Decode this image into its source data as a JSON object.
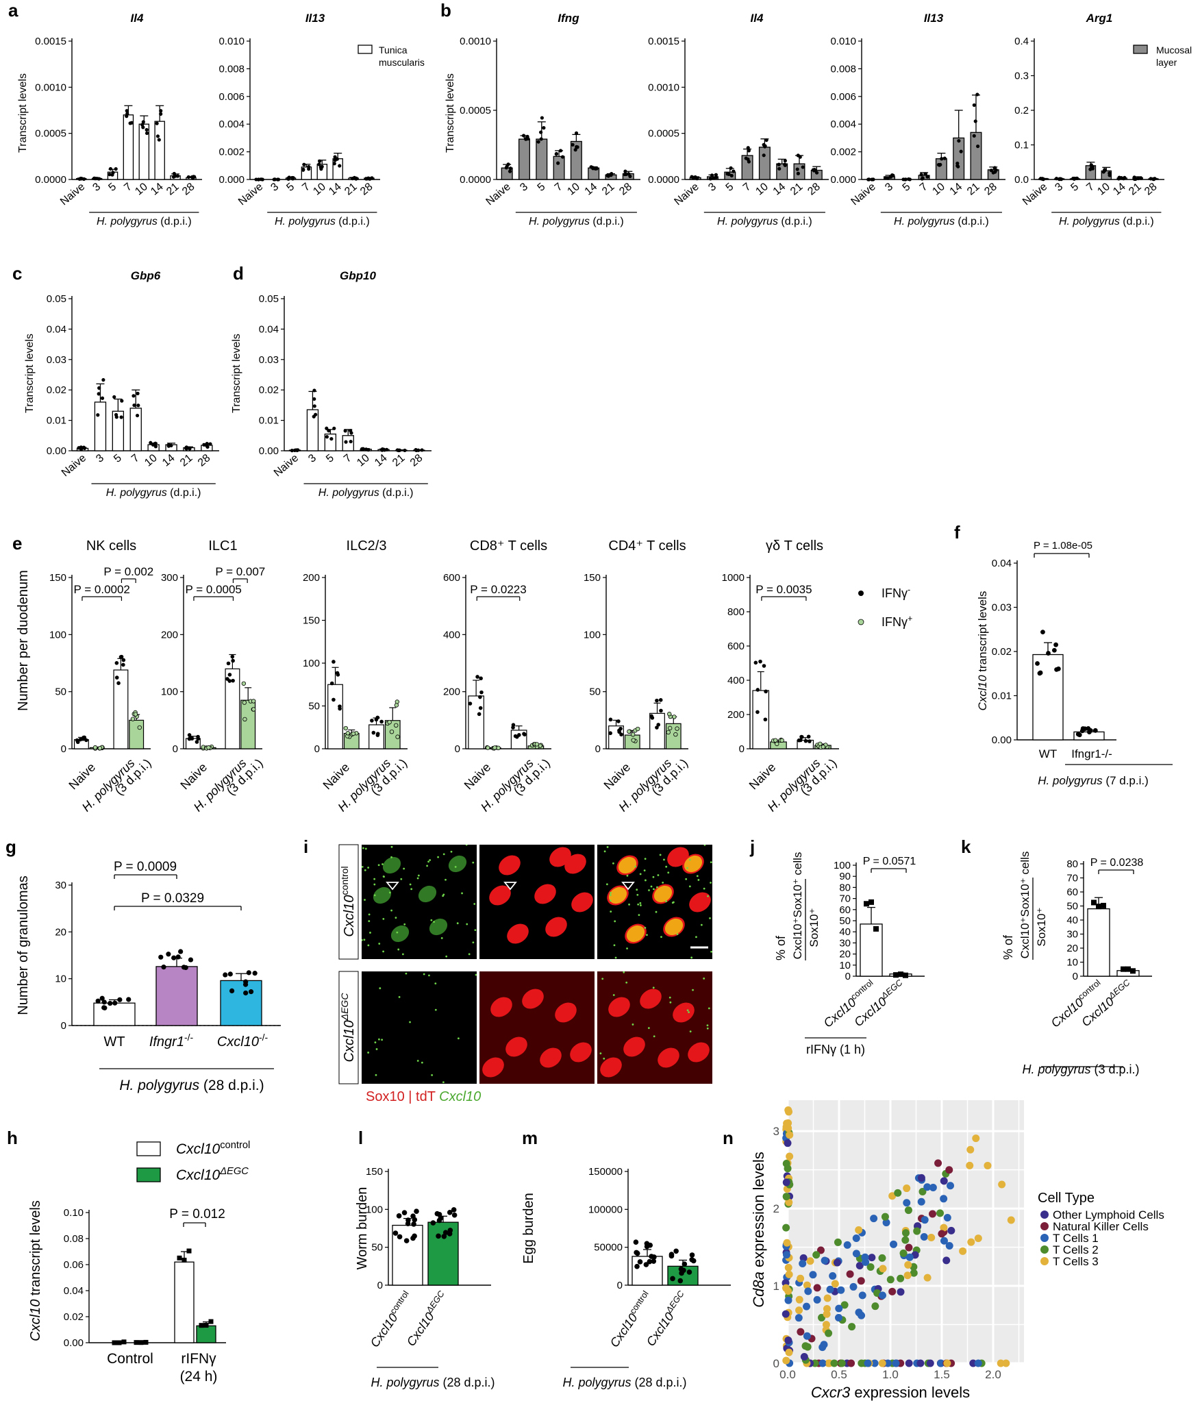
{
  "xgroup": {
    "Naive": "Naive",
    "dpi": [
      "3",
      "5",
      "7",
      "10",
      "14",
      "21",
      "28"
    ]
  },
  "hp_label": {
    "pre": "H. polygyrus",
    "post": " (d.p.i.)"
  },
  "panel_letters": {
    "a": "a",
    "b": "b",
    "c": "c",
    "d": "d",
    "e": "e",
    "f": "f",
    "g": "g",
    "h": "h",
    "i": "i",
    "j": "j",
    "k": "k",
    "l": "l",
    "m": "m",
    "n": "n"
  },
  "ylabel_transcript": "Transcript levels",
  "legend_a": "Tunica muscularis",
  "legend_b": "Mucosal layer",
  "e_legend": [
    "IFNγ⁻",
    "IFNγ⁺"
  ],
  "e_ylabel": "Number per duodenum",
  "e_xcats": [
    "Naive",
    "H. polygyrus",
    "(3 d.p.i.)"
  ],
  "f_texts": {
    "ylabel": "Cxcl10 transcript levels",
    "p": "P = 1.08e-05",
    "xsub": "H. polygyrus (7 d.p.i.)"
  },
  "g_texts": {
    "ylabel": "Number of granulomas",
    "p1": "P = 0.0009",
    "p2": "P = 0.0329",
    "xsub": "H. polygyrus (28 d.p.i.)"
  },
  "h_texts": {
    "ylabel": "Cxcl10 transcript levels",
    "leg1": "Cxcl10control",
    "leg2": "Cxcl10ΔEGC",
    "p": "P = 0.012",
    "x1": "Control",
    "x2": "rIFNγ",
    "x2b": "(24 h)"
  },
  "i_texts": {
    "row1": "Cxcl10control",
    "row2": "Cxcl10ΔEGC",
    "caption_sox": "Sox10 | tdT ",
    "caption_cx": "Cxcl10"
  },
  "j_texts": {
    "ylabel_top": "Cxcl10⁺Sox10⁺ cells",
    "ylabel_bot": "Sox10⁺",
    "ylabel_pre": "% of",
    "p": "P = 0.0571",
    "xsub": "rIFNγ (1 h)",
    "x1": "Cxcl10control",
    "x2": "Cxcl10ΔEGC"
  },
  "k_texts": {
    "ylabel_top": "Cxcl10⁺Sox10⁺ cells",
    "ylabel_bot": "Sox10⁺",
    "ylabel_pre": "% of",
    "p": "P = 0.0238",
    "xsub": "H. polygyrus (3 d.p.i.)",
    "x1": "Cxcl10control",
    "x2": "Cxcl10ΔEGC"
  },
  "l_texts": {
    "ylabel": "Worm burden",
    "xsub": "H. polygyrus (28 d.p.i.)",
    "x1": "Cxcl10control",
    "x2": "Cxcl10ΔEGC"
  },
  "m_texts": {
    "ylabel": "Egg burden",
    "xsub": "H. polygyrus (28 d.p.i.)",
    "x1": "Cxcl10control",
    "x2": "Cxcl10ΔEGC"
  },
  "n_texts": {
    "xlabel": "Cxcr3 expression levels",
    "ylabel": "Cd8a expression levels",
    "legend_title": "Cell Type"
  },
  "colors": {
    "white": "#ffffff",
    "grey": "#8c8c8c",
    "purple": "#b885c4",
    "teal": "#2eb6e0",
    "green": "#1e9a44",
    "lightgreen": "#a9d59a",
    "lymph": "#3a2e8c",
    "nk": "#7a1e3a",
    "t1": "#2a62b5",
    "t2": "#4d8b2c",
    "t3": "#e2b23a"
  },
  "chart_data": [
    {
      "panel": "a",
      "type": "bar",
      "title": "Il4",
      "ylim": [
        0,
        0.0015
      ],
      "yticks": [
        "0.0000",
        "0.0005",
        "0.0010",
        "0.0015"
      ],
      "categories": [
        "Naive",
        "3",
        "5",
        "7",
        "10",
        "14",
        "21",
        "28"
      ],
      "values": [
        1e-05,
        1e-05,
        8e-05,
        0.0007,
        0.0006,
        0.00063,
        4e-05,
        2e-05
      ],
      "errors": [
        5e-06,
        5e-06,
        3e-05,
        0.0001,
        9e-05,
        0.00017,
        2e-05,
        1e-05
      ]
    },
    {
      "panel": "a",
      "type": "bar",
      "title": "Il13",
      "ylim": [
        0,
        0.01
      ],
      "yticks": [
        "0.000",
        "0.002",
        "0.004",
        "0.006",
        "0.008",
        "0.010"
      ],
      "categories": [
        "Naive",
        "3",
        "5",
        "7",
        "10",
        "14",
        "21",
        "28"
      ],
      "values": [
        0.0,
        0.0,
        0.0001,
        0.0009,
        0.0011,
        0.0015,
        0.0001,
        0.0001
      ],
      "errors": [
        0.0,
        0.0,
        5e-05,
        0.0002,
        0.0003,
        0.0004,
        5e-05,
        5e-05
      ]
    },
    {
      "panel": "b",
      "type": "bar",
      "title": "Ifng",
      "ylim": [
        0,
        0.0012
      ],
      "yticks": [
        "0.0000",
        "0.0005",
        "0.0010"
      ],
      "categories": [
        "Naive",
        "3",
        "5",
        "7",
        "10",
        "14",
        "21",
        "28"
      ],
      "values": [
        0.0001,
        0.00035,
        0.00035,
        0.0002,
        0.00033,
        0.0001,
        4e-05,
        5e-05
      ],
      "errors": [
        3e-05,
        3e-05,
        0.00015,
        5e-05,
        6e-05,
        1e-05,
        1e-05,
        2e-05
      ]
    },
    {
      "panel": "b",
      "type": "bar",
      "title": "Il4",
      "ylim": [
        0,
        0.0015
      ],
      "yticks": [
        "0.0000",
        "0.0005",
        "0.0010",
        "0.0015"
      ],
      "categories": [
        "Naive",
        "3",
        "5",
        "7",
        "10",
        "14",
        "21",
        "28"
      ],
      "values": [
        2e-05,
        3e-05,
        8e-05,
        0.00026,
        0.00035,
        0.00017,
        0.00017,
        0.0001
      ],
      "errors": [
        1e-05,
        2e-05,
        4e-05,
        7e-05,
        9e-05,
        5e-05,
        9e-05,
        4e-05
      ]
    },
    {
      "panel": "b",
      "type": "bar",
      "title": "Il13",
      "ylim": [
        0,
        0.01
      ],
      "yticks": [
        "0.000",
        "0.002",
        "0.004",
        "0.006",
        "0.008",
        "0.010"
      ],
      "categories": [
        "Naive",
        "3",
        "5",
        "7",
        "10",
        "14",
        "21",
        "28"
      ],
      "values": [
        0.0,
        0.0002,
        0.0,
        0.0003,
        0.0015,
        0.003,
        0.0034,
        0.0007
      ],
      "errors": [
        0.0,
        0.0001,
        0.0,
        0.0002,
        0.0004,
        0.002,
        0.0027,
        0.0002
      ]
    },
    {
      "panel": "b",
      "type": "bar",
      "title": "Arg1",
      "ylim": [
        0,
        0.4
      ],
      "yticks": [
        "0.0",
        "0.1",
        "0.2",
        "0.3",
        "0.4"
      ],
      "categories": [
        "Naive",
        "3",
        "5",
        "7",
        "10",
        "14",
        "21",
        "28"
      ],
      "values": [
        0.002,
        0.002,
        0.002,
        0.04,
        0.025,
        0.004,
        0.005,
        0.002
      ],
      "errors": [
        0.001,
        0.001,
        0.001,
        0.01,
        0.01,
        0.002,
        0.003,
        0.001
      ]
    },
    {
      "panel": "c",
      "type": "bar",
      "title": "Gbp6",
      "ylim": [
        0,
        0.05
      ],
      "yticks": [
        "0.00",
        "0.01",
        "0.02",
        "0.03",
        "0.04",
        "0.05"
      ],
      "categories": [
        "Naive",
        "3",
        "5",
        "7",
        "10",
        "14",
        "21",
        "28"
      ],
      "values": [
        0.0008,
        0.016,
        0.013,
        0.014,
        0.002,
        0.002,
        0.001,
        0.0018
      ],
      "errors": [
        0.0003,
        0.006,
        0.004,
        0.006,
        0.0005,
        0.0005,
        0.0003,
        0.0005
      ]
    },
    {
      "panel": "d",
      "type": "bar",
      "title": "Gbp10",
      "ylim": [
        0,
        0.05
      ],
      "yticks": [
        "0.00",
        "0.01",
        "0.02",
        "0.03",
        "0.04",
        "0.05"
      ],
      "categories": [
        "Naive",
        "3",
        "5",
        "7",
        "10",
        "14",
        "21",
        "28"
      ],
      "values": [
        0.0002,
        0.0135,
        0.0055,
        0.005,
        0.0005,
        0.0004,
        0.0002,
        0.0002
      ],
      "errors": [
        0.0001,
        0.006,
        0.0015,
        0.002,
        0.0002,
        0.0002,
        0.0001,
        0.0001
      ]
    },
    {
      "panel": "e",
      "type": "bar",
      "title": "NK cells",
      "ylim": [
        0,
        150
      ],
      "yticks": [
        "0",
        "50",
        "100",
        "150"
      ],
      "series": [
        {
          "name": "IFNγ⁻",
          "values": [
            8,
            69
          ]
        },
        {
          "name": "IFNγ⁺",
          "values": [
            1,
            25
          ]
        }
      ],
      "errors": [
        [
          2,
          10
        ],
        [
          0.5,
          5
        ]
      ],
      "pvalues": [
        "P = 0.0002",
        "P = 0.002"
      ]
    },
    {
      "panel": "e",
      "type": "bar",
      "title": "ILC1",
      "ylim": [
        0,
        300
      ],
      "yticks": [
        "0",
        "100",
        "200",
        "300"
      ],
      "series": [
        {
          "name": "IFNγ⁻",
          "values": [
            18,
            140
          ]
        },
        {
          "name": "IFNγ⁺",
          "values": [
            2,
            85
          ]
        }
      ],
      "errors": [
        [
          4,
          25
        ],
        [
          1,
          22
        ]
      ],
      "pvalues": [
        "P = 0.0005",
        "P = 0.007"
      ]
    },
    {
      "panel": "e",
      "type": "bar",
      "title": "ILC2/3",
      "ylim": [
        0,
        200
      ],
      "yticks": [
        "0",
        "50",
        "100",
        "150",
        "200"
      ],
      "series": [
        {
          "name": "IFNγ⁻",
          "values": [
            75,
            28
          ]
        },
        {
          "name": "IFNγ⁺",
          "values": [
            18,
            33
          ]
        }
      ],
      "errors": [
        [
          20,
          8
        ],
        [
          4,
          15
        ]
      ],
      "pvalues": []
    },
    {
      "panel": "e",
      "type": "bar",
      "title": "CD8⁺ T cells",
      "ylim": [
        0,
        600
      ],
      "yticks": [
        "0",
        "200",
        "400",
        "600"
      ],
      "series": [
        {
          "name": "IFNγ⁻",
          "values": [
            185,
            65
          ]
        },
        {
          "name": "IFNγ⁺",
          "values": [
            3,
            10
          ]
        }
      ],
      "errors": [
        [
          55,
          15
        ],
        [
          1,
          4
        ]
      ],
      "pvalues": [
        "P = 0.0223"
      ]
    },
    {
      "panel": "e",
      "type": "bar",
      "title": "CD4⁺ T cells",
      "ylim": [
        0,
        150
      ],
      "yticks": [
        "0",
        "50",
        "100",
        "150"
      ],
      "series": [
        {
          "name": "IFNγ⁻",
          "values": [
            20,
            31
          ]
        },
        {
          "name": "IFNγ⁺",
          "values": [
            12,
            22
          ]
        }
      ],
      "errors": [
        [
          5,
          9
        ],
        [
          4,
          6
        ]
      ],
      "pvalues": []
    },
    {
      "panel": "e",
      "type": "bar",
      "title": "γδ T cells",
      "ylim": [
        0,
        1000
      ],
      "yticks": [
        "0",
        "200",
        "400",
        "600",
        "800",
        "1000"
      ],
      "series": [
        {
          "name": "IFNγ⁻",
          "values": [
            340,
            50
          ]
        },
        {
          "name": "IFNγ⁺",
          "values": [
            40,
            20
          ]
        }
      ],
      "errors": [
        [
          110,
          15
        ],
        [
          10,
          8
        ]
      ],
      "pvalues": [
        "P = 0.0035"
      ]
    },
    {
      "panel": "f",
      "type": "bar",
      "title": "",
      "ylim": [
        0,
        0.04
      ],
      "yticks": [
        "0.00",
        "0.01",
        "0.02",
        "0.03",
        "0.04"
      ],
      "categories": [
        "WT",
        "Ifngr1-/-"
      ],
      "values": [
        0.0193,
        0.0018
      ],
      "errors": [
        0.0027,
        0.0004
      ]
    },
    {
      "panel": "g",
      "type": "bar",
      "title": "",
      "ylim": [
        0,
        30
      ],
      "yticks": [
        "0",
        "10",
        "20",
        "30"
      ],
      "categories": [
        "WT",
        "Ifngr1⁻/⁻",
        "Cxcl10⁻/⁻"
      ],
      "values": [
        4.8,
        12.6,
        9.6
      ],
      "errors": [
        0.7,
        1.8,
        1.5
      ]
    },
    {
      "panel": "h",
      "type": "bar",
      "title": "",
      "ylim": [
        0,
        0.1
      ],
      "yticks": [
        "0.00",
        "0.02",
        "0.04",
        "0.06",
        "0.08",
        "0.10"
      ],
      "categories": [
        "Control",
        "rIFNγ (24 h)"
      ],
      "series": [
        {
          "name": "Cxcl10control",
          "values": [
            0.0,
            0.062
          ]
        },
        {
          "name": "Cxcl10ΔEGC",
          "values": [
            0.0,
            0.013
          ]
        }
      ],
      "errors": [
        [
          0,
          0.008
        ],
        [
          0,
          0.003
        ]
      ]
    },
    {
      "panel": "j",
      "type": "bar",
      "title": "",
      "ylim": [
        0,
        100
      ],
      "yticks": [
        "0",
        "10",
        "20",
        "30",
        "40",
        "50",
        "60",
        "70",
        "80",
        "90",
        "100"
      ],
      "categories": [
        "Cxcl10control",
        "Cxcl10ΔEGC"
      ],
      "values": [
        47,
        2
      ],
      "errors": [
        15,
        1
      ]
    },
    {
      "panel": "k",
      "type": "bar",
      "title": "",
      "ylim": [
        0,
        80
      ],
      "yticks": [
        "0",
        "10",
        "20",
        "30",
        "40",
        "50",
        "60",
        "70",
        "80"
      ],
      "categories": [
        "Cxcl10control",
        "Cxcl10ΔEGC"
      ],
      "values": [
        48,
        4
      ],
      "errors": [
        8,
        1
      ]
    },
    {
      "panel": "l",
      "type": "bar",
      "title": "",
      "ylim": [
        0,
        150
      ],
      "yticks": [
        "0",
        "50",
        "100",
        "150"
      ],
      "categories": [
        "Cxcl10control",
        "Cxcl10ΔEGC"
      ],
      "values": [
        79,
        83
      ],
      "errors": [
        9,
        8
      ]
    },
    {
      "panel": "m",
      "type": "bar",
      "title": "",
      "ylim": [
        0,
        150000
      ],
      "yticks": [
        "0",
        "50000",
        "100000",
        "150000"
      ],
      "categories": [
        "Cxcl10control",
        "Cxcl10ΔEGC"
      ],
      "values": [
        38000,
        25000
      ],
      "errors": [
        9000,
        8000
      ]
    },
    {
      "panel": "n",
      "type": "scatter",
      "xlim": [
        0,
        2.3
      ],
      "ylim": [
        0,
        3.4
      ],
      "xticks": [
        "0.0",
        "0.5",
        "1.0",
        "1.5",
        "2.0"
      ],
      "yticks": [
        "0",
        "1",
        "2",
        "3"
      ],
      "legend": [
        "Other Lymphoid Cells",
        "Natural Killer Cells",
        "T Cells 1",
        "T Cells 2",
        "T Cells 3"
      ]
    }
  ]
}
